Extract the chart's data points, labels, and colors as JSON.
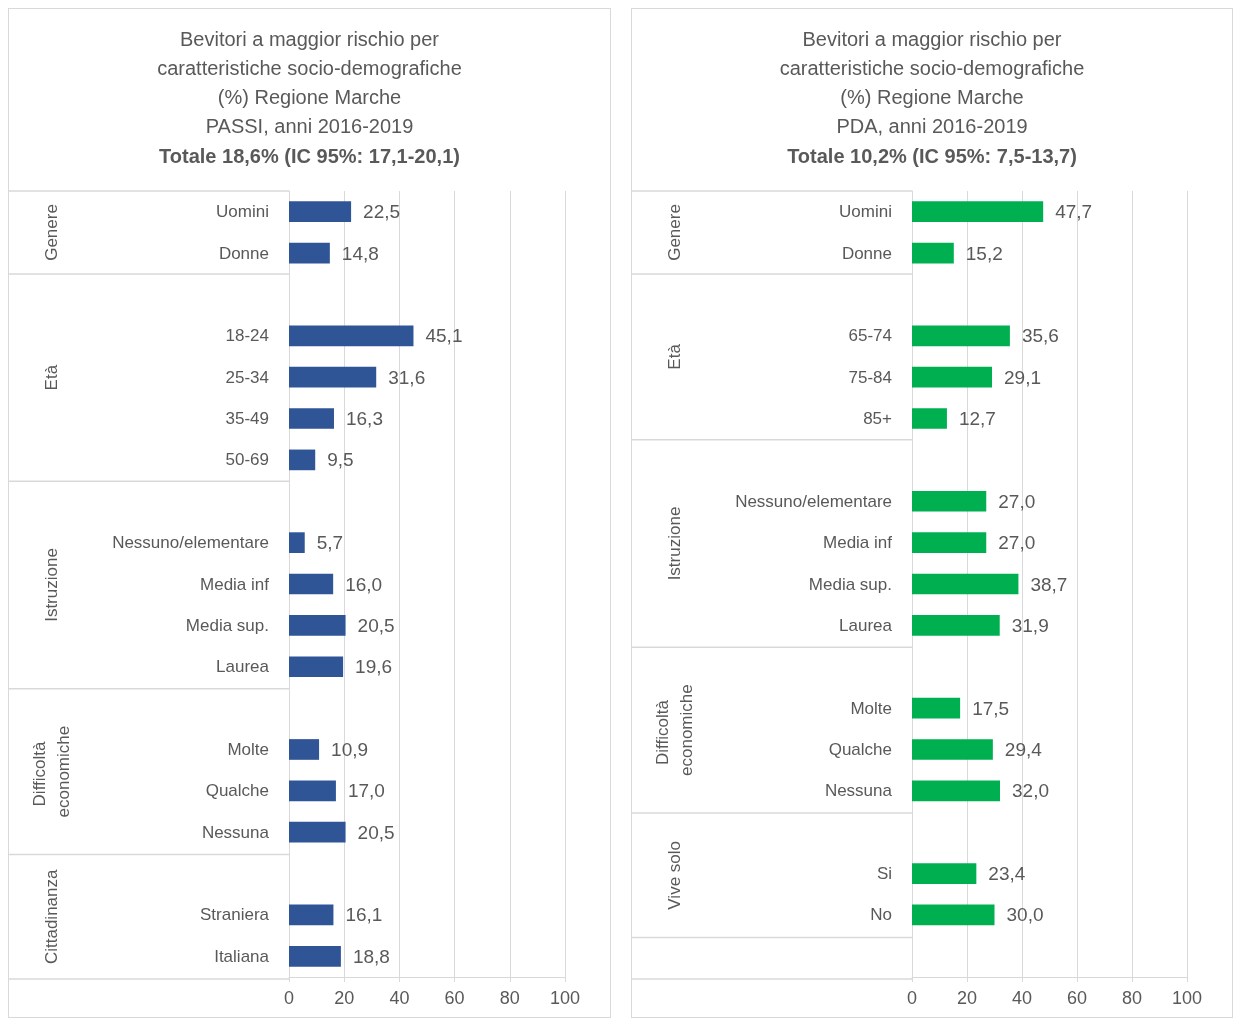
{
  "chart_data": [
    {
      "type": "bar",
      "orientation": "horizontal",
      "title": "Bevitori a maggior rischio per\ncaratteristiche socio-demografiche\n(%) Regione Marche\nPASSI, anni 2016-2019",
      "subtitle": "Totale 18,6% (IC 95%: 17,1-20,1)",
      "categories": [
        "Uomini",
        "Donne",
        null,
        "18-24",
        "25-34",
        "35-49",
        "50-69",
        null,
        "Nessuno/elementare",
        "Media inf",
        "Media sup.",
        "Laurea",
        null,
        "Molte",
        "Qualche",
        "Nessuna",
        null,
        "Straniera",
        "Italiana"
      ],
      "values": [
        22.5,
        14.8,
        null,
        45.1,
        31.6,
        16.3,
        9.5,
        null,
        5.7,
        16.0,
        20.5,
        19.6,
        null,
        10.9,
        17.0,
        20.5,
        null,
        16.1,
        18.8
      ],
      "value_labels": [
        "22,5",
        "14,8",
        null,
        "45,1",
        "31,6",
        "16,3",
        "9,5",
        null,
        "5,7",
        "16,0",
        "20,5",
        "19,6",
        null,
        "10,9",
        "17,0",
        "20,5",
        null,
        "16,1",
        "18,8"
      ],
      "color": "#2f5597",
      "xlim": [
        0,
        100
      ],
      "xticks": [
        0,
        20,
        40,
        60,
        80,
        100
      ],
      "grid": "x",
      "annotations": [
        "Genere",
        "Età",
        "Istruzione",
        "Difficoltà economiche",
        "Cittadinanza"
      ]
    },
    {
      "type": "bar",
      "orientation": "horizontal",
      "title": "Bevitori a maggior rischio per\ncaratteristiche socio-demografiche\n(%) Regione Marche\nPDA, anni 2016-2019",
      "subtitle": "Totale 10,2% (IC 95%: 7,5-13,7)",
      "categories": [
        "Uomini",
        "Donne",
        null,
        "65-74",
        "75-84",
        "85+",
        null,
        "Nessuno/elementare",
        "Media inf",
        "Media sup.",
        "Laurea",
        null,
        "Molte",
        "Qualche",
        "Nessuna",
        null,
        "Si",
        "No",
        null
      ],
      "values": [
        47.7,
        15.2,
        null,
        35.6,
        29.1,
        12.7,
        null,
        27.0,
        27.0,
        38.7,
        31.9,
        null,
        17.5,
        29.4,
        32.0,
        null,
        23.4,
        30.0,
        null
      ],
      "value_labels": [
        "47,7",
        "15,2",
        null,
        "35,6",
        "29,1",
        "12,7",
        null,
        "27,0",
        "27,0",
        "38,7",
        "31,9",
        null,
        "17,5",
        "29,4",
        "32,0",
        null,
        "23,4",
        "30,0",
        null
      ],
      "color": "#00b050",
      "xlim": [
        0,
        100
      ],
      "xticks": [
        0,
        20,
        40,
        60,
        80,
        100
      ],
      "grid": "x",
      "annotations": [
        "Genere",
        "Età",
        "Istruzione",
        "Difficoltà economiche",
        "Vive solo"
      ]
    }
  ]
}
